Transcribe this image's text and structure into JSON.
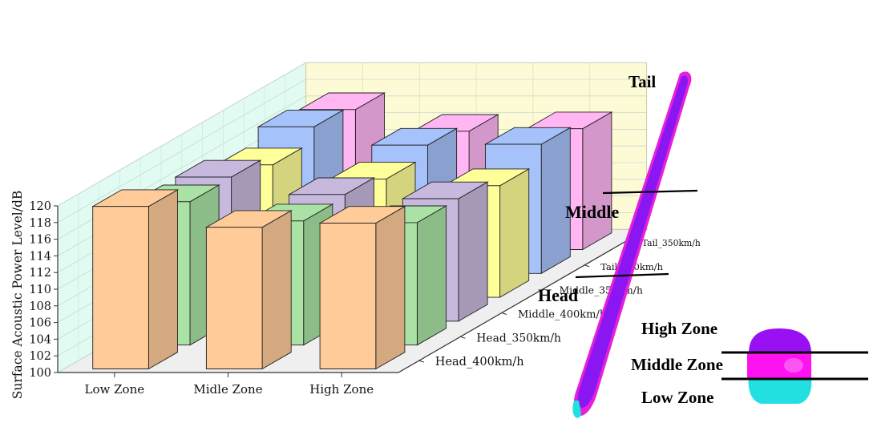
{
  "chart_data": {
    "type": "bar",
    "ylabel": "Surface Acoustic Power Level/dB",
    "ylim": [
      100,
      120
    ],
    "y_ticks": [
      "100",
      "102",
      "104",
      "106",
      "108",
      "110",
      "112",
      "114",
      "116",
      "118",
      "120"
    ],
    "categories": [
      "Low Zone",
      "Midle Zone",
      "High Zone"
    ],
    "series": [
      {
        "name": "Head_400km/h",
        "color": "#ffcc99",
        "values": [
          119.5,
          117.0,
          117.5
        ]
      },
      {
        "name": "Head_350km/h",
        "color": "#a9e2a4",
        "values": [
          117.2,
          114.9,
          114.7
        ]
      },
      {
        "name": "Middle_400km/h",
        "color": "#c7b8dd",
        "values": [
          117.3,
          115.2,
          114.7
        ]
      },
      {
        "name": "Middle_350km/h",
        "color": "#ffff99",
        "values": [
          115.9,
          114.2,
          113.4
        ]
      },
      {
        "name": "Tail_400km/h",
        "color": "#a6c2fa",
        "values": [
          117.6,
          115.4,
          115.5
        ]
      },
      {
        "name": "Tail_350km/h",
        "color": "#ffb6f3",
        "values": [
          116.8,
          114.2,
          114.5
        ]
      }
    ],
    "depth_labels": [
      "Head_400km/h",
      "Head_350km/h",
      "Middle_400km/h",
      "Middle_350km/h",
      "Tail_400km/h",
      "Tail_350km/h"
    ]
  },
  "train_diagram": {
    "labels": {
      "tail": "Tail",
      "middle": "Middle",
      "head": "Head"
    },
    "zones": {
      "high": "High Zone",
      "middle": "Middle Zone",
      "low": "Low Zone"
    },
    "colors": {
      "body": "#8a16f2",
      "rim": "#e61fd8",
      "cyan": "#22e0e0"
    }
  }
}
